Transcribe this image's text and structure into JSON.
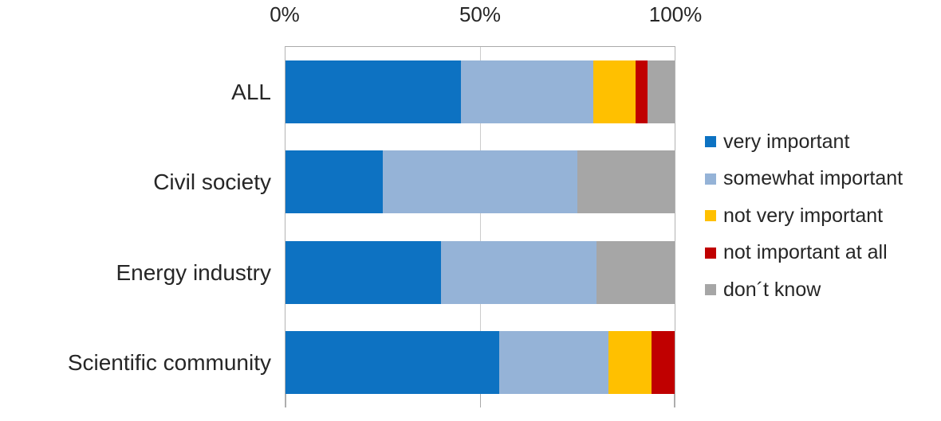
{
  "chart_data": {
    "type": "bar",
    "orientation": "horizontal",
    "stacked": true,
    "unit": "percent",
    "categories": [
      "ALL",
      "Civil society",
      "Energy industry",
      "Scientific community"
    ],
    "series": [
      {
        "name": "very important",
        "color": "#0d72c2",
        "values": [
          45,
          25,
          40,
          55
        ]
      },
      {
        "name": "somewhat important",
        "color": "#95b3d7",
        "values": [
          34,
          50,
          40,
          28
        ]
      },
      {
        "name": "not very important",
        "color": "#ffc000",
        "values": [
          11,
          0,
          0,
          11
        ]
      },
      {
        "name": "not important at all",
        "color": "#c00000",
        "values": [
          3,
          0,
          0,
          6
        ]
      },
      {
        "name": "don´t know",
        "color": "#a6a6a6",
        "values": [
          7,
          25,
          20,
          0
        ]
      }
    ],
    "x_axis": {
      "position": "top",
      "range": [
        0,
        100
      ],
      "ticks": [
        "0%",
        "50%",
        "100%"
      ]
    },
    "legend_position": "right",
    "gridlines": "vertical line at 50%"
  }
}
